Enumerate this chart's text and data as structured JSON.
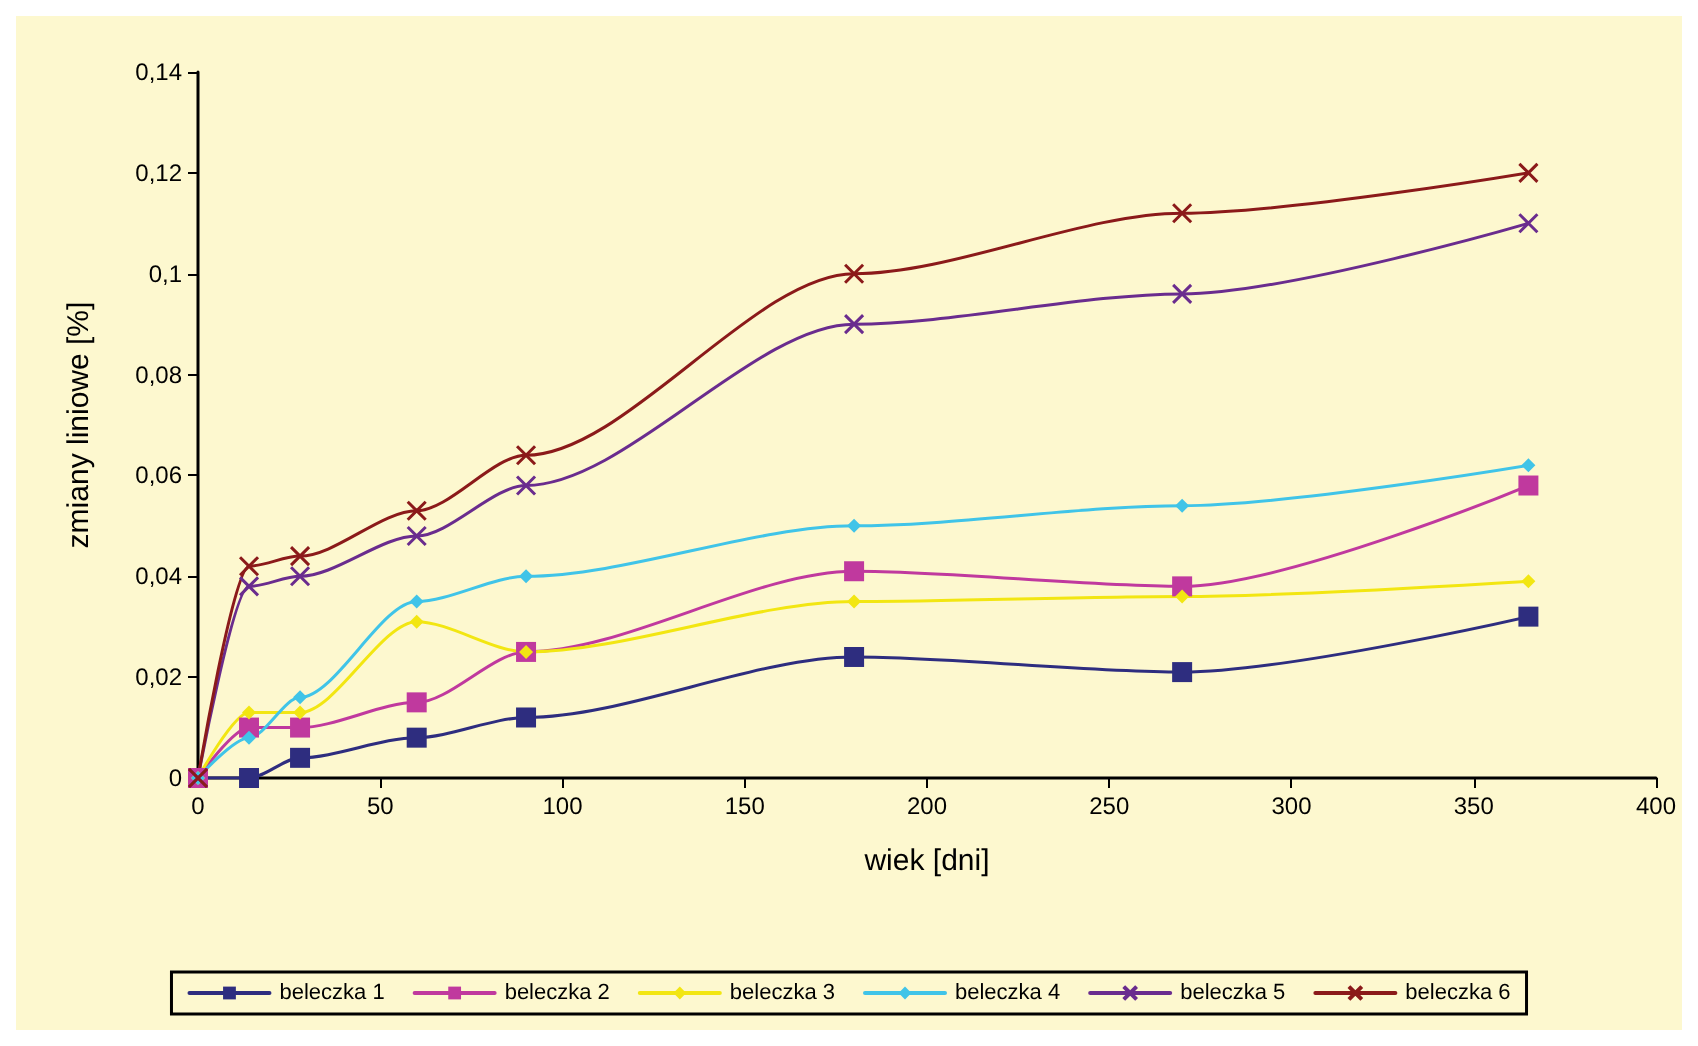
{
  "chart_data": {
    "type": "line",
    "xlabel": "wiek [dni]",
    "ylabel": "zmiany liniowe [%]",
    "x": [
      0,
      14,
      28,
      60,
      90,
      180,
      270,
      365
    ],
    "xlim": [
      0,
      400
    ],
    "xticks": [
      0,
      50,
      100,
      150,
      200,
      250,
      300,
      350,
      400
    ],
    "ylim": [
      0,
      0.14
    ],
    "yticks": [
      {
        "value": 0,
        "label": "0"
      },
      {
        "value": 0.02,
        "label": "0,02"
      },
      {
        "value": 0.04,
        "label": "0,04"
      },
      {
        "value": 0.06,
        "label": "0,06"
      },
      {
        "value": 0.08,
        "label": "0,08"
      },
      {
        "value": 0.1,
        "label": "0,1"
      },
      {
        "value": 0.12,
        "label": "0,12"
      },
      {
        "value": 0.14,
        "label": "0,14"
      }
    ],
    "grid": false,
    "legend": "bottom",
    "series": [
      {
        "name": "beleczka 1",
        "color": "#2e2d7f",
        "marker": "square",
        "values": [
          0,
          0,
          0.004,
          0.008,
          0.012,
          0.024,
          0.021,
          0.032
        ]
      },
      {
        "name": "beleczka 2",
        "color": "#c0399e",
        "marker": "square",
        "values": [
          0,
          0.01,
          0.01,
          0.015,
          0.025,
          0.041,
          0.038,
          0.058
        ]
      },
      {
        "name": "beleczka 3",
        "color": "#f2e612",
        "marker": "diamond",
        "values": [
          0,
          0.013,
          0.013,
          0.031,
          0.025,
          0.035,
          0.036,
          0.039
        ]
      },
      {
        "name": "beleczka 4",
        "color": "#40c4e8",
        "marker": "diamond",
        "values": [
          0,
          0.008,
          0.016,
          0.035,
          0.04,
          0.05,
          0.054,
          0.062
        ]
      },
      {
        "name": "beleczka 5",
        "color": "#6a2c8e",
        "marker": "cross",
        "values": [
          0,
          0.038,
          0.04,
          0.048,
          0.058,
          0.09,
          0.096,
          0.11
        ]
      },
      {
        "name": "beleczka 6",
        "color": "#8b1a1a",
        "marker": "cross",
        "values": [
          0,
          0.042,
          0.044,
          0.053,
          0.064,
          0.1,
          0.112,
          0.12
        ]
      }
    ]
  }
}
